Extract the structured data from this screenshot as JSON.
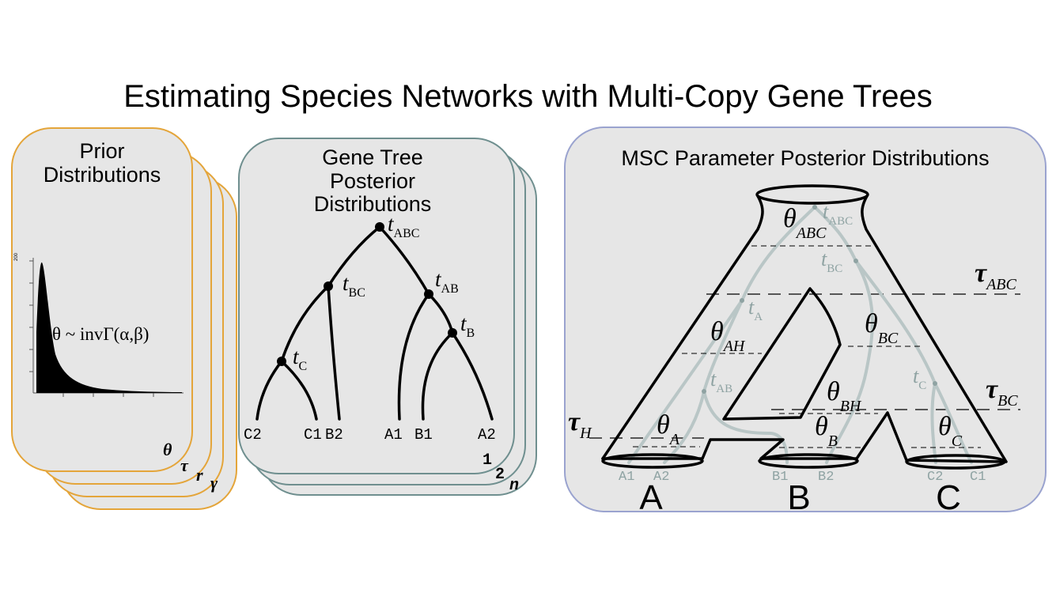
{
  "title": "Estimating Species Networks with Multi-Copy Gene Trees",
  "colors": {
    "prior_border": "#e4a53a",
    "gene_border": "#6f8f8f",
    "msc_border": "#9aa3cf",
    "panel_fill": "#e6e6e6",
    "gene_line": "#b9c6c6",
    "label_grey": "#8fa3a3"
  },
  "prior": {
    "title_line1": "Prior",
    "title_line2": "Distributions",
    "formula": "θ ~ invΓ(α,β)",
    "axis_tick": "200",
    "stack_labels": [
      "θ",
      "τ",
      "r",
      "γ"
    ]
  },
  "gene_trees": {
    "title_line1": "Gene Tree",
    "title_line2": "Posterior",
    "title_line3": "Distributions",
    "node_labels": [
      {
        "t": "t",
        "sub": "ABC"
      },
      {
        "t": "t",
        "sub": "BC"
      },
      {
        "t": "t",
        "sub": "AB"
      },
      {
        "t": "t",
        "sub": "B"
      },
      {
        "t": "t",
        "sub": "C"
      }
    ],
    "leaves": [
      "C2",
      "C1",
      "B2",
      "A1",
      "B1",
      "A2"
    ],
    "stack_labels": [
      "1",
      "2",
      "n"
    ]
  },
  "msc": {
    "title": "MSC Parameter Posterior Distributions",
    "species": [
      "A",
      "B",
      "C"
    ],
    "thetas": [
      {
        "t": "θ",
        "sub": "ABC"
      },
      {
        "t": "θ",
        "sub": "AH"
      },
      {
        "t": "θ",
        "sub": "BC"
      },
      {
        "t": "θ",
        "sub": "BH"
      },
      {
        "t": "θ",
        "sub": "A"
      },
      {
        "t": "θ",
        "sub": "B"
      },
      {
        "t": "θ",
        "sub": "C"
      }
    ],
    "taus": [
      {
        "t": "τ",
        "sub": "ABC"
      },
      {
        "t": "τ",
        "sub": "BC"
      },
      {
        "t": "τ",
        "sub": "H"
      }
    ],
    "gene_times": [
      {
        "t": "t",
        "sub": "ABC"
      },
      {
        "t": "t",
        "sub": "BC"
      },
      {
        "t": "t",
        "sub": "A"
      },
      {
        "t": "t",
        "sub": "AB"
      },
      {
        "t": "t",
        "sub": "C"
      }
    ],
    "tips": [
      "A1",
      "A2",
      "B1",
      "B2",
      "C2",
      "C1"
    ]
  }
}
